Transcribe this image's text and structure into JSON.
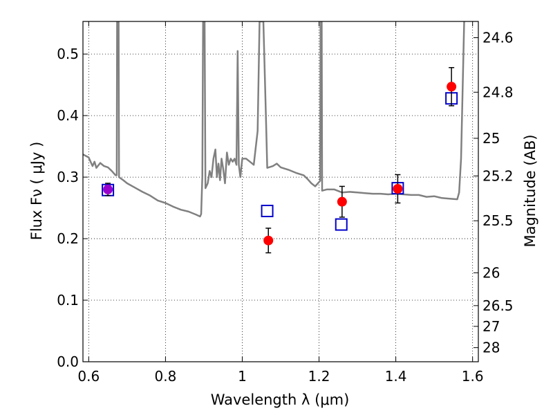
{
  "chart_data": {
    "type": "scatter",
    "xlabel": "Wavelength  λ (μm)",
    "ylabel": "Flux  Fν  ( μJy )",
    "ylabel_right": "Magnitude (AB)",
    "xlim": [
      0.585,
      1.615
    ],
    "ylim": [
      0.0,
      0.553
    ],
    "grid": true,
    "x_ticks": [
      0.6,
      0.8,
      1.0,
      1.2,
      1.4,
      1.6
    ],
    "x_tick_labels": [
      "0.6",
      "0.8",
      "1",
      "1.2",
      "1.4",
      "1.6"
    ],
    "y_ticks": [
      0.0,
      0.1,
      0.2,
      0.3,
      0.4,
      0.5
    ],
    "y_tick_labels": [
      "0.0",
      "0.1",
      "0.2",
      "0.3",
      "0.4",
      "0.5"
    ],
    "right_ticks": [
      {
        "label": "24.6",
        "flux": 0.5266
      },
      {
        "label": "24.8",
        "flux": 0.438
      },
      {
        "label": "25",
        "flux": 0.3631
      },
      {
        "label": "25.2",
        "flux": 0.302
      },
      {
        "label": "25.5",
        "flux": 0.2291
      },
      {
        "label": "26",
        "flux": 0.1445
      },
      {
        "label": "26.5",
        "flux": 0.0912
      },
      {
        "label": "27",
        "flux": 0.0575
      },
      {
        "label": "28",
        "flux": 0.0229
      }
    ],
    "series": [
      {
        "kind": "spectrum_line",
        "color": "#808080",
        "points": [
          [
            0.585,
            0.337
          ],
          [
            0.6,
            0.332
          ],
          [
            0.61,
            0.318
          ],
          [
            0.615,
            0.325
          ],
          [
            0.62,
            0.315
          ],
          [
            0.63,
            0.323
          ],
          [
            0.64,
            0.318
          ],
          [
            0.65,
            0.316
          ],
          [
            0.66,
            0.31
          ],
          [
            0.67,
            0.303
          ],
          [
            0.673,
            0.303
          ],
          [
            0.674,
            0.553
          ],
          [
            0.678,
            0.553
          ],
          [
            0.679,
            0.3
          ],
          [
            0.69,
            0.295
          ],
          [
            0.7,
            0.29
          ],
          [
            0.72,
            0.283
          ],
          [
            0.74,
            0.276
          ],
          [
            0.76,
            0.27
          ],
          [
            0.78,
            0.262
          ],
          [
            0.8,
            0.258
          ],
          [
            0.82,
            0.252
          ],
          [
            0.84,
            0.247
          ],
          [
            0.86,
            0.244
          ],
          [
            0.88,
            0.239
          ],
          [
            0.89,
            0.236
          ],
          [
            0.893,
            0.24
          ],
          [
            0.896,
            0.3
          ],
          [
            0.898,
            0.553
          ],
          [
            0.902,
            0.553
          ],
          [
            0.904,
            0.282
          ],
          [
            0.91,
            0.29
          ],
          [
            0.915,
            0.31
          ],
          [
            0.92,
            0.3
          ],
          [
            0.925,
            0.33
          ],
          [
            0.93,
            0.345
          ],
          [
            0.934,
            0.3
          ],
          [
            0.938,
            0.322
          ],
          [
            0.942,
            0.295
          ],
          [
            0.946,
            0.33
          ],
          [
            0.95,
            0.315
          ],
          [
            0.955,
            0.29
          ],
          [
            0.96,
            0.34
          ],
          [
            0.965,
            0.32
          ],
          [
            0.97,
            0.33
          ],
          [
            0.975,
            0.325
          ],
          [
            0.98,
            0.33
          ],
          [
            0.985,
            0.32
          ],
          [
            0.988,
            0.505
          ],
          [
            0.991,
            0.32
          ],
          [
            0.995,
            0.3
          ],
          [
            1.0,
            0.33
          ],
          [
            1.01,
            0.33
          ],
          [
            1.02,
            0.325
          ],
          [
            1.03,
            0.32
          ],
          [
            1.04,
            0.375
          ],
          [
            1.045,
            0.553
          ],
          [
            1.055,
            0.553
          ],
          [
            1.062,
            0.39
          ],
          [
            1.065,
            0.315
          ],
          [
            1.08,
            0.318
          ],
          [
            1.09,
            0.322
          ],
          [
            1.1,
            0.316
          ],
          [
            1.12,
            0.312
          ],
          [
            1.14,
            0.307
          ],
          [
            1.16,
            0.303
          ],
          [
            1.17,
            0.297
          ],
          [
            1.18,
            0.29
          ],
          [
            1.19,
            0.285
          ],
          [
            1.2,
            0.292
          ],
          [
            1.203,
            0.294
          ],
          [
            1.204,
            0.553
          ],
          [
            1.207,
            0.553
          ],
          [
            1.208,
            0.278
          ],
          [
            1.22,
            0.28
          ],
          [
            1.24,
            0.28
          ],
          [
            1.26,
            0.275
          ],
          [
            1.28,
            0.276
          ],
          [
            1.3,
            0.275
          ],
          [
            1.32,
            0.274
          ],
          [
            1.34,
            0.273
          ],
          [
            1.36,
            0.273
          ],
          [
            1.38,
            0.272
          ],
          [
            1.4,
            0.273
          ],
          [
            1.42,
            0.272
          ],
          [
            1.44,
            0.271
          ],
          [
            1.46,
            0.271
          ],
          [
            1.48,
            0.268
          ],
          [
            1.5,
            0.269
          ],
          [
            1.52,
            0.266
          ],
          [
            1.54,
            0.265
          ],
          [
            1.56,
            0.264
          ],
          [
            1.565,
            0.275
          ],
          [
            1.57,
            0.33
          ],
          [
            1.578,
            0.553
          ]
        ]
      },
      {
        "kind": "model_photometry",
        "marker": "open-square",
        "color": "#0000cc",
        "points": [
          [
            0.65,
            0.279
          ],
          [
            1.065,
            0.245
          ],
          [
            1.258,
            0.223
          ],
          [
            1.405,
            0.282
          ],
          [
            1.545,
            0.428
          ]
        ]
      },
      {
        "kind": "observed_photometry",
        "marker": "filled-circle",
        "color": "#ff0000",
        "points": [
          {
            "x": 0.65,
            "y": 0.28,
            "err": 0.01,
            "color": "#9900cc"
          },
          {
            "x": 1.068,
            "y": 0.197,
            "err": 0.02
          },
          {
            "x": 1.26,
            "y": 0.26,
            "err": 0.025
          },
          {
            "x": 1.405,
            "y": 0.281,
            "err": 0.023
          },
          {
            "x": 1.545,
            "y": 0.447,
            "err": 0.031
          }
        ]
      }
    ]
  }
}
